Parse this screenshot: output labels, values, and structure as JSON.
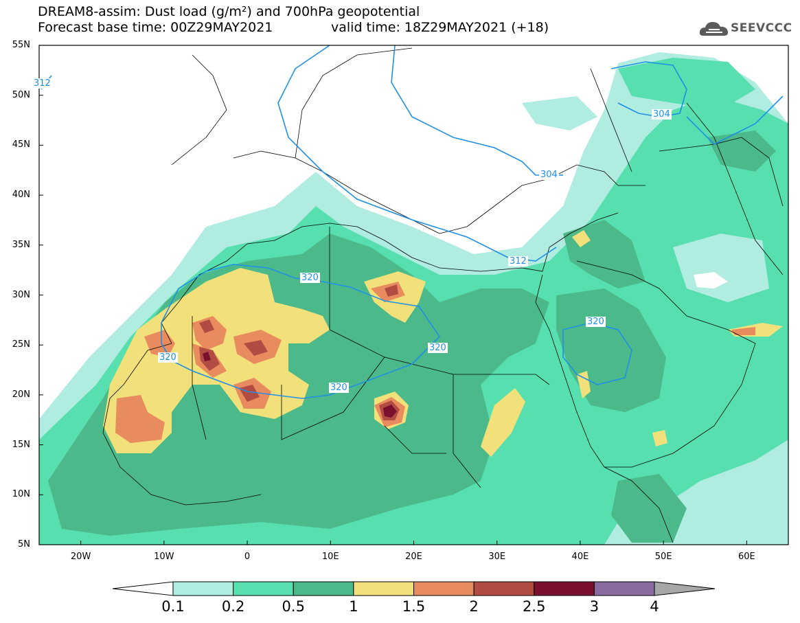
{
  "header": {
    "line1": "DREAM8-assim: Dust load (g/m²) and 700hPa geopotential",
    "base_time": "Forecast base time: 00Z29MAY2021",
    "valid_time": "valid time: 18Z29MAY2021 (+18)"
  },
  "logo": {
    "text": "SEEVCCC",
    "icon": "cloud-logo-icon"
  },
  "map": {
    "lat_range": [
      5,
      55
    ],
    "lon_range": [
      -25,
      65
    ],
    "lat_ticks": [
      "55N",
      "50N",
      "45N",
      "40N",
      "35N",
      "30N",
      "25N",
      "20N",
      "15N",
      "10N",
      "5N"
    ],
    "lon_ticks": [
      "20W",
      "10W",
      "0",
      "10E",
      "20E",
      "30E",
      "40E",
      "50E",
      "60E"
    ],
    "contour_labels": [
      "312",
      "304",
      "304",
      "312",
      "320",
      "320",
      "320",
      "320",
      "320"
    ]
  },
  "colorbar": {
    "levels": [
      "0.1",
      "0.2",
      "0.5",
      "1",
      "1.5",
      "2",
      "2.5",
      "3",
      "4"
    ],
    "colors": [
      "#b0ece0",
      "#57dfb0",
      "#4cb98a",
      "#f2e17a",
      "#e88b5f",
      "#b24b42",
      "#7a0f2e",
      "#8a6ba0",
      "#a7a7a7"
    ]
  },
  "colors": {
    "c01": "#b0ece0",
    "c02": "#57dfb0",
    "c05": "#4cb98a",
    "c1": "#f2e17a",
    "c15": "#e88b5f",
    "c2": "#b24b42",
    "c25": "#7a0f2e",
    "contour": "#1e90e6"
  }
}
